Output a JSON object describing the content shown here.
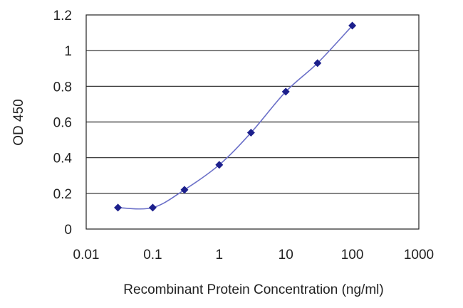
{
  "chart_data": {
    "type": "line",
    "title": "",
    "xlabel": "Recombinant Protein Concentration (ng/ml)",
    "ylabel": "OD 450",
    "x_scale": "log",
    "xlim": [
      0.01,
      1000
    ],
    "ylim": [
      0,
      1.2
    ],
    "x_ticks": [
      0.01,
      0.1,
      1,
      10,
      100,
      1000
    ],
    "x_tick_labels": [
      "0.01",
      "0.1",
      "1",
      "10",
      "100",
      "1000"
    ],
    "y_ticks": [
      0,
      0.2,
      0.4,
      0.6,
      0.8,
      1,
      1.2
    ],
    "y_tick_labels": [
      "0",
      "0.2",
      "0.4",
      "0.6",
      "0.8",
      "1",
      "1.2"
    ],
    "grid": "horizontal",
    "series": [
      {
        "x": [
          0.03,
          0.1,
          0.3,
          1,
          3,
          10,
          30,
          100
        ],
        "y": [
          0.12,
          0.12,
          0.22,
          0.36,
          0.54,
          0.77,
          0.93,
          1.14
        ]
      }
    ],
    "colors": {
      "line": "#6a6fc8",
      "marker": "#1c1f8c",
      "grid": "#222222"
    }
  }
}
